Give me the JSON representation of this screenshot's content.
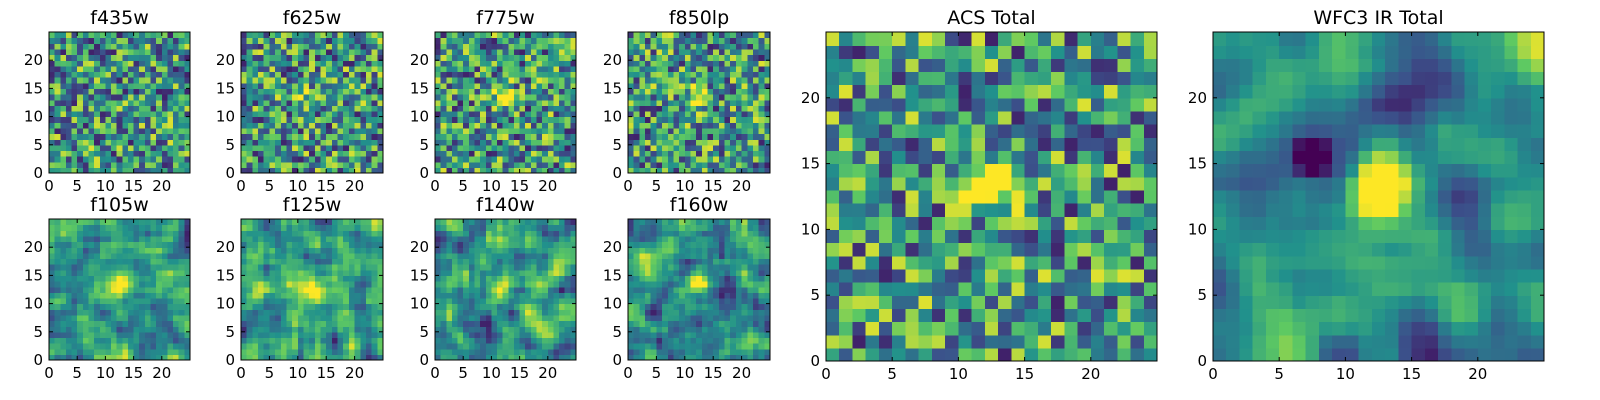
{
  "figure": {
    "background": "#ffffff"
  },
  "colormap": [
    "#440154",
    "#3b528b",
    "#21918c",
    "#5ec962",
    "#fde725"
  ],
  "chart_data": [
    {
      "type": "heatmap",
      "title": "f435w",
      "xlabel": "",
      "ylabel": "",
      "xlim": [
        0,
        25
      ],
      "ylim": [
        0,
        25
      ],
      "xticks": [
        0,
        5,
        10,
        15,
        20
      ],
      "yticks": [
        0,
        5,
        10,
        15,
        20
      ],
      "grid_size": [
        25,
        25
      ],
      "seed": 11,
      "blur": 0,
      "feature": "noise"
    },
    {
      "type": "heatmap",
      "title": "f625w",
      "xlabel": "",
      "ylabel": "",
      "xlim": [
        0,
        25
      ],
      "ylim": [
        0,
        25
      ],
      "xticks": [
        0,
        5,
        10,
        15,
        20
      ],
      "yticks": [
        0,
        5,
        10,
        15,
        20
      ],
      "grid_size": [
        25,
        25
      ],
      "seed": 23,
      "blur": 0,
      "feature": "faint source near (12, 13)"
    },
    {
      "type": "heatmap",
      "title": "f775w",
      "xlabel": "",
      "ylabel": "",
      "xlim": [
        0,
        25
      ],
      "ylim": [
        0,
        25
      ],
      "xticks": [
        0,
        5,
        10,
        15,
        20
      ],
      "yticks": [
        0,
        5,
        10,
        15,
        20
      ],
      "grid_size": [
        25,
        25
      ],
      "seed": 37,
      "blur": 0,
      "feature": "source near (12, 13)"
    },
    {
      "type": "heatmap",
      "title": "f850lp",
      "xlabel": "",
      "ylabel": "",
      "xlim": [
        0,
        25
      ],
      "ylim": [
        0,
        25
      ],
      "xticks": [
        0,
        5,
        10,
        15,
        20
      ],
      "yticks": [
        0,
        5,
        10,
        15,
        20
      ],
      "grid_size": [
        25,
        25
      ],
      "seed": 41,
      "blur": 0,
      "feature": "source near (12, 13)"
    },
    {
      "type": "heatmap",
      "title": "f105w",
      "xlabel": "",
      "ylabel": "",
      "xlim": [
        0,
        25
      ],
      "ylim": [
        0,
        25
      ],
      "xticks": [
        0,
        5,
        10,
        15,
        20
      ],
      "yticks": [
        0,
        5,
        10,
        15,
        20
      ],
      "grid_size": [
        25,
        25
      ],
      "seed": 53,
      "blur": 1,
      "feature": "source near (12, 13)"
    },
    {
      "type": "heatmap",
      "title": "f125w",
      "xlabel": "",
      "ylabel": "",
      "xlim": [
        0,
        25
      ],
      "ylim": [
        0,
        25
      ],
      "xticks": [
        0,
        5,
        10,
        15,
        20
      ],
      "yticks": [
        0,
        5,
        10,
        15,
        20
      ],
      "grid_size": [
        25,
        25
      ],
      "seed": 67,
      "blur": 1,
      "feature": "source near (12, 13)"
    },
    {
      "type": "heatmap",
      "title": "f140w",
      "xlabel": "",
      "ylabel": "",
      "xlim": [
        0,
        25
      ],
      "ylim": [
        0,
        25
      ],
      "xticks": [
        0,
        5,
        10,
        15,
        20
      ],
      "yticks": [
        0,
        5,
        10,
        15,
        20
      ],
      "grid_size": [
        25,
        25
      ],
      "seed": 79,
      "blur": 1,
      "feature": "source near (12, 13)"
    },
    {
      "type": "heatmap",
      "title": "f160w",
      "xlabel": "",
      "ylabel": "",
      "xlim": [
        0,
        25
      ],
      "ylim": [
        0,
        25
      ],
      "xticks": [
        0,
        5,
        10,
        15,
        20
      ],
      "yticks": [
        0,
        5,
        10,
        15,
        20
      ],
      "grid_size": [
        25,
        25
      ],
      "seed": 83,
      "blur": 1,
      "feature": "source near (12, 13)"
    },
    {
      "type": "heatmap",
      "title": "ACS Total",
      "xlabel": "",
      "ylabel": "",
      "xlim": [
        0,
        25
      ],
      "ylim": [
        0,
        25
      ],
      "xticks": [
        0,
        5,
        10,
        15,
        20
      ],
      "yticks": [
        0,
        5,
        10,
        15,
        20
      ],
      "grid_size": [
        25,
        25
      ],
      "seed": 97,
      "blur": 0,
      "feature": "bright source near (12, 13)"
    },
    {
      "type": "heatmap",
      "title": "WFC3 IR Total",
      "xlabel": "",
      "ylabel": "",
      "xlim": [
        0,
        25
      ],
      "ylim": [
        0,
        25
      ],
      "xticks": [
        0,
        5,
        10,
        15,
        20
      ],
      "yticks": [
        0,
        5,
        10,
        15,
        20
      ],
      "grid_size": [
        25,
        25
      ],
      "seed": 101,
      "blur": 2,
      "feature": "bright source near (12, 13), dark spot near (7, 15)"
    }
  ]
}
